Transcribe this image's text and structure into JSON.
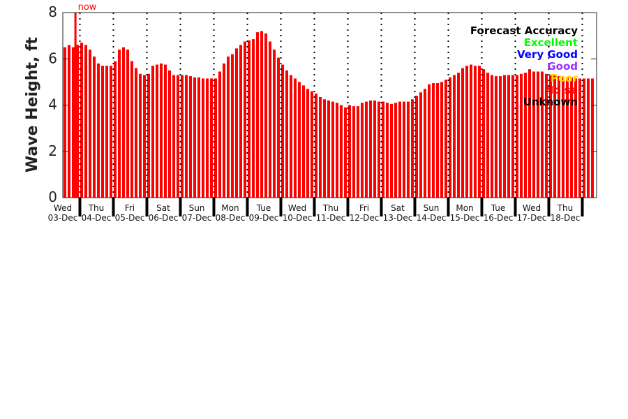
{
  "chart_data": {
    "type": "bar",
    "title": "",
    "xlabel": "",
    "ylabel": "Wave Height, ft",
    "ylim": [
      0,
      8
    ],
    "yticks": [
      0,
      2,
      4,
      6,
      8
    ],
    "bar_color": "#ff0000",
    "bars_per_day": 8,
    "bars_before_first_day": 4,
    "now_label": "now",
    "now_at_bar": 2.6,
    "days": [
      {
        "name": "Wed",
        "date": "03-Dec"
      },
      {
        "name": "Thu",
        "date": "04-Dec"
      },
      {
        "name": "Fri",
        "date": "05-Dec"
      },
      {
        "name": "Sat",
        "date": "06-Dec"
      },
      {
        "name": "Sun",
        "date": "07-Dec"
      },
      {
        "name": "Mon",
        "date": "08-Dec"
      },
      {
        "name": "Tue",
        "date": "09-Dec"
      },
      {
        "name": "Wed",
        "date": "10-Dec"
      },
      {
        "name": "Thu",
        "date": "11-Dec"
      },
      {
        "name": "Fri",
        "date": "12-Dec"
      },
      {
        "name": "Sat",
        "date": "13-Dec"
      },
      {
        "name": "Sun",
        "date": "14-Dec"
      },
      {
        "name": "Mon",
        "date": "15-Dec"
      },
      {
        "name": "Tue",
        "date": "16-Dec"
      },
      {
        "name": "Wed",
        "date": "17-Dec"
      },
      {
        "name": "Thu",
        "date": "18-Dec"
      }
    ],
    "values": [
      6.5,
      6.6,
      6.5,
      6.6,
      6.7,
      6.6,
      6.4,
      6.1,
      5.8,
      5.7,
      5.7,
      5.7,
      5.9,
      6.4,
      6.5,
      6.4,
      5.9,
      5.6,
      5.35,
      5.3,
      5.35,
      5.7,
      5.75,
      5.8,
      5.75,
      5.5,
      5.3,
      5.3,
      5.3,
      5.3,
      5.25,
      5.2,
      5.2,
      5.15,
      5.15,
      5.15,
      5.15,
      5.45,
      5.8,
      6.1,
      6.2,
      6.45,
      6.6,
      6.75,
      6.8,
      6.85,
      7.15,
      7.2,
      7.1,
      6.75,
      6.4,
      6.05,
      5.75,
      5.5,
      5.3,
      5.15,
      5.0,
      4.85,
      4.7,
      4.6,
      4.5,
      4.35,
      4.25,
      4.2,
      4.15,
      4.1,
      4.0,
      3.9,
      4.0,
      3.95,
      3.95,
      4.1,
      4.15,
      4.2,
      4.2,
      4.15,
      4.15,
      4.1,
      4.05,
      4.1,
      4.15,
      4.15,
      4.15,
      4.25,
      4.4,
      4.55,
      4.7,
      4.9,
      4.95,
      4.95,
      5.0,
      5.1,
      5.2,
      5.3,
      5.4,
      5.6,
      5.7,
      5.75,
      5.7,
      5.7,
      5.55,
      5.4,
      5.3,
      5.25,
      5.25,
      5.3,
      5.3,
      5.3,
      5.3,
      5.35,
      5.4,
      5.55,
      5.45,
      5.45,
      5.45,
      5.35,
      5.3,
      5.3,
      5.25,
      5.2,
      5.2,
      5.2,
      5.15,
      5.15,
      5.15,
      5.15,
      5.15,
      5.15
    ],
    "legend": {
      "title": "Forecast Accuracy",
      "placement": "top-right",
      "entries": [
        {
          "label": "Excellent",
          "color": "#00ff00"
        },
        {
          "label": "Very Good",
          "color": "#0000ff"
        },
        {
          "label": "Good",
          "color": "#9933ff"
        },
        {
          "label": "Poor",
          "color": "#ffd700"
        },
        {
          "label": "Noise",
          "color": "#ff0000"
        },
        {
          "label": "Unknown",
          "color": "#000000"
        }
      ]
    }
  }
}
